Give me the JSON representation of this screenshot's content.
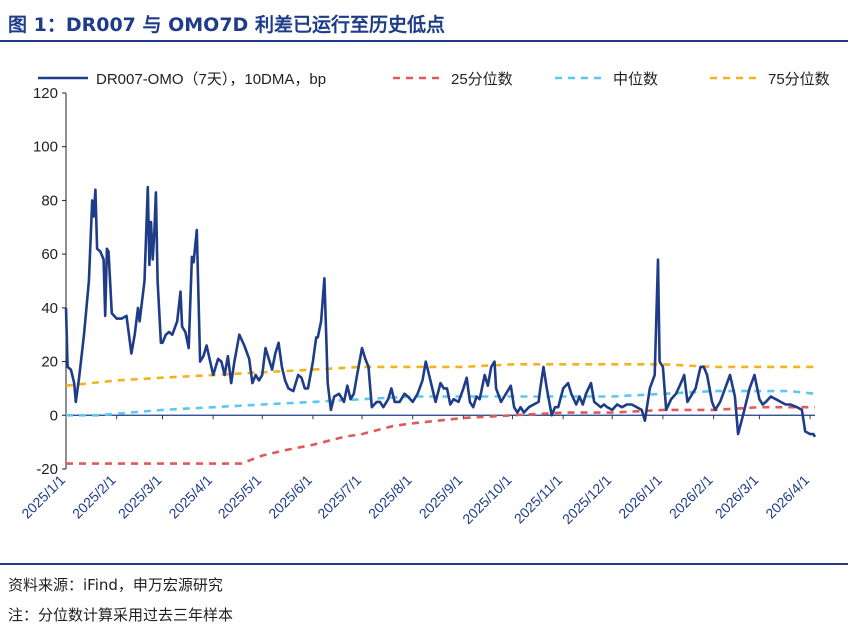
{
  "figure": {
    "title": "图 1：DR007 与 OMO7D 利差已运行至历史低点",
    "source": "资料来源：iFind，申万宏源研究",
    "note": "注：分位数计算采用过去三年样本"
  },
  "colors": {
    "title": "#1f3c88",
    "spread": "#1f3c88",
    "p25": "#e05a5a",
    "median": "#5cc8f0",
    "p75": "#f2b31b",
    "axis": "#1f3c88"
  },
  "chart_data": {
    "type": "line",
    "title": "",
    "xlabel": "",
    "ylabel": "",
    "ylim": [
      -20,
      120
    ],
    "yticks": [
      -20,
      0,
      20,
      40,
      60,
      80,
      100,
      120
    ],
    "x_ticks": [
      "2025/1/1",
      "2025/2/1",
      "2025/3/1",
      "2025/4/1",
      "2025/5/1",
      "2025/6/1",
      "2025/7/1",
      "2025/8/1",
      "2025/9/1",
      "2025/10/1",
      "2025/11/1",
      "2025/12/1",
      "2026/1/1",
      "2026/2/1",
      "2026/3/1",
      "2026/4/1"
    ],
    "grid": false,
    "legend_position": "top",
    "series": [
      {
        "name": "DR007-OMO（7天），10DMA，bp",
        "style": "solid",
        "points": [
          [
            "2025/1/1",
            40
          ],
          [
            "2025/1/2",
            18
          ],
          [
            "2025/1/4",
            17
          ],
          [
            "2025/1/6",
            12
          ],
          [
            "2025/1/7",
            5
          ],
          [
            "2025/1/9",
            14
          ],
          [
            "2025/1/12",
            30
          ],
          [
            "2025/1/15",
            50
          ],
          [
            "2025/1/17",
            80
          ],
          [
            "2025/1/18",
            74
          ],
          [
            "2025/1/19",
            84
          ],
          [
            "2025/1/20",
            62
          ],
          [
            "2025/1/22",
            61
          ],
          [
            "2025/1/24",
            58
          ],
          [
            "2025/1/25",
            37
          ],
          [
            "2025/1/26",
            62
          ],
          [
            "2025/1/27",
            61
          ],
          [
            "2025/1/29",
            38
          ],
          [
            "2025/2/1",
            36
          ],
          [
            "2025/2/4",
            36
          ],
          [
            "2025/2/7",
            37
          ],
          [
            "2025/2/10",
            23
          ],
          [
            "2025/2/12",
            30
          ],
          [
            "2025/2/14",
            40
          ],
          [
            "2025/2/15",
            35
          ],
          [
            "2025/2/18",
            50
          ],
          [
            "2025/2/20",
            85
          ],
          [
            "2025/2/21",
            56
          ],
          [
            "2025/2/22",
            72
          ],
          [
            "2025/2/23",
            58
          ],
          [
            "2025/2/24",
            68
          ],
          [
            "2025/2/25",
            83
          ],
          [
            "2025/2/26",
            50
          ],
          [
            "2025/2/28",
            27
          ],
          [
            "2025/3/1",
            27
          ],
          [
            "2025/3/3",
            30
          ],
          [
            "2025/3/5",
            31
          ],
          [
            "2025/3/7",
            30
          ],
          [
            "2025/3/10",
            35
          ],
          [
            "2025/3/12",
            46
          ],
          [
            "2025/3/13",
            33
          ],
          [
            "2025/3/15",
            31
          ],
          [
            "2025/3/17",
            25
          ],
          [
            "2025/3/19",
            59
          ],
          [
            "2025/3/20",
            57
          ],
          [
            "2025/3/22",
            69
          ],
          [
            "2025/3/24",
            20
          ],
          [
            "2025/3/26",
            22
          ],
          [
            "2025/3/28",
            26
          ],
          [
            "2025/4/1",
            15
          ],
          [
            "2025/4/4",
            21
          ],
          [
            "2025/4/6",
            20
          ],
          [
            "2025/4/8",
            15
          ],
          [
            "2025/4/10",
            22
          ],
          [
            "2025/4/12",
            12
          ],
          [
            "2025/4/14",
            20
          ],
          [
            "2025/4/17",
            30
          ],
          [
            "2025/4/20",
            26
          ],
          [
            "2025/4/23",
            21
          ],
          [
            "2025/4/25",
            12
          ],
          [
            "2025/4/27",
            15
          ],
          [
            "2025/4/29",
            13
          ],
          [
            "2025/5/1",
            15
          ],
          [
            "2025/5/3",
            25
          ],
          [
            "2025/5/5",
            21
          ],
          [
            "2025/5/7",
            17
          ],
          [
            "2025/5/9",
            23
          ],
          [
            "2025/5/11",
            27
          ],
          [
            "2025/5/13",
            18
          ],
          [
            "2025/5/15",
            13
          ],
          [
            "2025/5/17",
            10
          ],
          [
            "2025/5/20",
            9
          ],
          [
            "2025/5/23",
            15
          ],
          [
            "2025/5/25",
            14
          ],
          [
            "2025/5/27",
            10
          ],
          [
            "2025/5/29",
            10
          ],
          [
            "2025/6/1",
            20
          ],
          [
            "2025/6/3",
            29
          ],
          [
            "2025/6/4",
            29
          ],
          [
            "2025/6/6",
            35
          ],
          [
            "2025/6/8",
            51
          ],
          [
            "2025/6/10",
            12
          ],
          [
            "2025/6/12",
            2
          ],
          [
            "2025/6/14",
            7
          ],
          [
            "2025/6/17",
            8
          ],
          [
            "2025/6/20",
            5
          ],
          [
            "2025/6/22",
            11
          ],
          [
            "2025/6/24",
            6
          ],
          [
            "2025/6/26",
            8
          ],
          [
            "2025/6/28",
            15
          ],
          [
            "2025/7/1",
            25
          ],
          [
            "2025/7/3",
            21
          ],
          [
            "2025/7/5",
            18
          ],
          [
            "2025/7/7",
            3
          ],
          [
            "2025/7/10",
            5
          ],
          [
            "2025/7/12",
            5
          ],
          [
            "2025/7/14",
            3
          ],
          [
            "2025/7/17",
            6
          ],
          [
            "2025/7/19",
            10
          ],
          [
            "2025/7/21",
            5
          ],
          [
            "2025/7/24",
            5
          ],
          [
            "2025/7/27",
            8
          ],
          [
            "2025/7/29",
            7
          ],
          [
            "2025/8/1",
            5
          ],
          [
            "2025/8/4",
            8
          ],
          [
            "2025/8/7",
            13
          ],
          [
            "2025/8/9",
            20
          ],
          [
            "2025/8/11",
            15
          ],
          [
            "2025/8/13",
            10
          ],
          [
            "2025/8/15",
            5
          ],
          [
            "2025/8/18",
            12
          ],
          [
            "2025/8/20",
            10
          ],
          [
            "2025/8/22",
            10
          ],
          [
            "2025/8/24",
            4
          ],
          [
            "2025/8/26",
            6
          ],
          [
            "2025/8/29",
            5
          ],
          [
            "2025/9/1",
            10
          ],
          [
            "2025/9/3",
            14
          ],
          [
            "2025/9/5",
            5
          ],
          [
            "2025/9/7",
            3
          ],
          [
            "2025/9/9",
            7
          ],
          [
            "2025/9/11",
            6
          ],
          [
            "2025/9/14",
            15
          ],
          [
            "2025/9/16",
            11
          ],
          [
            "2025/9/18",
            18
          ],
          [
            "2025/9/19",
            19
          ],
          [
            "2025/9/20",
            20
          ],
          [
            "2025/9/21",
            10
          ],
          [
            "2025/9/24",
            5
          ],
          [
            "2025/9/26",
            7
          ],
          [
            "2025/9/28",
            9
          ],
          [
            "2025/9/30",
            11
          ],
          [
            "2025/10/2",
            3
          ],
          [
            "2025/10/4",
            1
          ],
          [
            "2025/10/6",
            3
          ],
          [
            "2025/10/8",
            1
          ],
          [
            "2025/10/11",
            3
          ],
          [
            "2025/10/14",
            4
          ],
          [
            "2025/10/17",
            5
          ],
          [
            "2025/10/18",
            10
          ],
          [
            "2025/10/20",
            18
          ],
          [
            "2025/10/22",
            10
          ],
          [
            "2025/10/25",
            0
          ],
          [
            "2025/10/27",
            3
          ],
          [
            "2025/10/29",
            3
          ],
          [
            "2025/11/1",
            10
          ],
          [
            "2025/11/4",
            12
          ],
          [
            "2025/11/6",
            8
          ],
          [
            "2025/11/9",
            4
          ],
          [
            "2025/11/11",
            7
          ],
          [
            "2025/11/13",
            4
          ],
          [
            "2025/11/15",
            8
          ],
          [
            "2025/11/18",
            12
          ],
          [
            "2025/11/20",
            5
          ],
          [
            "2025/11/22",
            4
          ],
          [
            "2025/11/24",
            3
          ],
          [
            "2025/11/26",
            4
          ],
          [
            "2025/11/28",
            3
          ],
          [
            "2025/12/1",
            2
          ],
          [
            "2025/12/4",
            4
          ],
          [
            "2025/12/7",
            3
          ],
          [
            "2025/12/10",
            4
          ],
          [
            "2025/12/13",
            4
          ],
          [
            "2025/12/16",
            3
          ],
          [
            "2025/12/19",
            2
          ],
          [
            "2025/12/21",
            -2
          ],
          [
            "2025/12/24",
            10
          ],
          [
            "2025/12/27",
            15
          ],
          [
            "2025/12/29",
            58
          ],
          [
            "2025/12/30",
            20
          ],
          [
            "2026/1/1",
            18
          ],
          [
            "2026/1/3",
            2
          ],
          [
            "2026/1/6",
            6
          ],
          [
            "2026/1/9",
            8
          ],
          [
            "2026/1/12",
            12
          ],
          [
            "2026/1/14",
            15
          ],
          [
            "2026/1/16",
            5
          ],
          [
            "2026/1/19",
            8
          ],
          [
            "2026/1/21",
            10
          ],
          [
            "2026/1/24",
            18
          ],
          [
            "2026/1/26",
            18
          ],
          [
            "2026/1/28",
            15
          ],
          [
            "2026/1/31",
            5
          ],
          [
            "2026/2/2",
            2
          ],
          [
            "2026/2/5",
            5
          ],
          [
            "2026/2/8",
            10
          ],
          [
            "2026/2/11",
            15
          ],
          [
            "2026/2/14",
            7
          ],
          [
            "2026/2/16",
            -7
          ],
          [
            "2026/2/19",
            0
          ],
          [
            "2026/2/23",
            10
          ],
          [
            "2026/2/26",
            15
          ],
          [
            "2026/3/1",
            6
          ],
          [
            "2026/3/3",
            4
          ],
          [
            "2026/3/5",
            5
          ],
          [
            "2026/3/8",
            7
          ],
          [
            "2026/3/11",
            6
          ],
          [
            "2026/3/14",
            5
          ],
          [
            "2026/3/17",
            4
          ],
          [
            "2026/3/20",
            4
          ],
          [
            "2026/3/24",
            3
          ],
          [
            "2026/3/27",
            2
          ],
          [
            "2026/3/29",
            -6
          ],
          [
            "2026/4/1",
            -7
          ],
          [
            "2026/4/3",
            -7
          ],
          [
            "2026/4/4",
            -8
          ]
        ]
      },
      {
        "name": "25分位数",
        "style": "dashed",
        "points": [
          [
            "2025/1/1",
            -18
          ],
          [
            "2025/4/18",
            -18
          ],
          [
            "2025/5/1",
            -15
          ],
          [
            "2025/5/15",
            -13
          ],
          [
            "2025/6/1",
            -11
          ],
          [
            "2025/6/20",
            -8
          ],
          [
            "2025/7/1",
            -7
          ],
          [
            "2025/7/20",
            -4
          ],
          [
            "2025/8/1",
            -3
          ],
          [
            "2025/9/1",
            -1
          ],
          [
            "2025/10/1",
            0
          ],
          [
            "2025/11/1",
            1
          ],
          [
            "2025/12/1",
            1
          ],
          [
            "2026/1/1",
            2
          ],
          [
            "2026/2/1",
            2
          ],
          [
            "2026/3/1",
            3
          ],
          [
            "2026/4/4",
            3
          ]
        ]
      },
      {
        "name": "中位数",
        "style": "dashed",
        "points": [
          [
            "2025/1/1",
            0
          ],
          [
            "2025/1/20",
            0
          ],
          [
            "2025/3/1",
            2
          ],
          [
            "2025/4/1",
            3
          ],
          [
            "2025/5/1",
            4
          ],
          [
            "2025/6/1",
            5
          ],
          [
            "2025/7/1",
            6
          ],
          [
            "2025/8/1",
            7
          ],
          [
            "2025/9/1",
            7
          ],
          [
            "2025/10/1",
            7
          ],
          [
            "2025/11/1",
            7
          ],
          [
            "2025/12/1",
            7
          ],
          [
            "2026/1/1",
            8
          ],
          [
            "2026/2/1",
            9
          ],
          [
            "2026/3/1",
            9
          ],
          [
            "2026/3/20",
            9
          ],
          [
            "2026/4/4",
            8
          ]
        ]
      },
      {
        "name": "75分位数",
        "style": "dashed",
        "points": [
          [
            "2025/1/1",
            11
          ],
          [
            "2025/2/1",
            13
          ],
          [
            "2025/3/1",
            14
          ],
          [
            "2025/4/1",
            15
          ],
          [
            "2025/5/1",
            16
          ],
          [
            "2025/6/1",
            17
          ],
          [
            "2025/7/1",
            18
          ],
          [
            "2025/8/1",
            18
          ],
          [
            "2025/9/1",
            18
          ],
          [
            "2025/10/1",
            19
          ],
          [
            "2025/11/1",
            19
          ],
          [
            "2025/12/1",
            19
          ],
          [
            "2026/1/1",
            19
          ],
          [
            "2026/2/1",
            18
          ],
          [
            "2026/3/1",
            18
          ],
          [
            "2026/4/4",
            18
          ]
        ]
      }
    ]
  }
}
